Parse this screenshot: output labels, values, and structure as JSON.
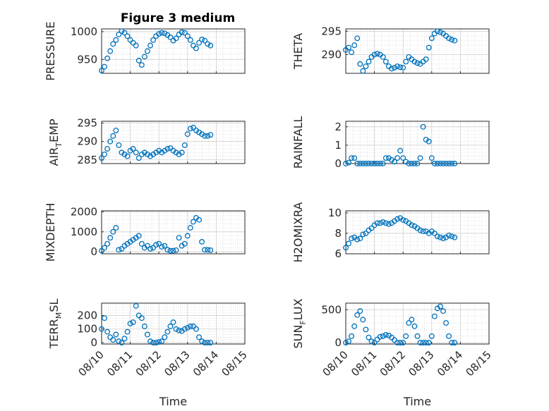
{
  "figure": {
    "title": "Figure 3 medium",
    "marker_color": "#0072BD",
    "time_ticks": [
      "08/10",
      "08/11",
      "08/12",
      "08/13",
      "08/14",
      "08/15"
    ],
    "xlabel": "Time"
  },
  "chart_data": [
    {
      "type": "scatter",
      "ylabel": "PRESSURE",
      "ylim": [
        925,
        1005
      ],
      "yticks": [
        950,
        1000
      ],
      "xlim": [
        0,
        5
      ],
      "grid": true,
      "x": [
        0.0,
        0.1,
        0.2,
        0.3,
        0.4,
        0.5,
        0.6,
        0.7,
        0.8,
        0.9,
        1.0,
        1.1,
        1.2,
        1.3,
        1.4,
        1.5,
        1.6,
        1.7,
        1.8,
        1.9,
        2.0,
        2.1,
        2.2,
        2.3,
        2.4,
        2.5,
        2.6,
        2.7,
        2.8,
        2.9,
        3.0,
        3.1,
        3.2,
        3.3,
        3.4,
        3.5,
        3.6,
        3.7,
        3.8
      ],
      "y": [
        930,
        937,
        952,
        965,
        978,
        985,
        995,
        1001,
        998,
        992,
        985,
        980,
        975,
        948,
        940,
        955,
        965,
        975,
        985,
        992,
        996,
        998,
        997,
        994,
        990,
        984,
        988,
        995,
        999,
        998,
        992,
        985,
        975,
        970,
        980,
        986,
        984,
        978,
        975
      ]
    },
    {
      "type": "scatter",
      "ylabel": "THETA",
      "ylim": [
        286,
        295.5
      ],
      "yticks": [
        290,
        295
      ],
      "xlim": [
        0,
        5
      ],
      "grid": true,
      "x": [
        0.0,
        0.1,
        0.2,
        0.3,
        0.4,
        0.5,
        0.6,
        0.7,
        0.8,
        0.9,
        1.0,
        1.1,
        1.2,
        1.3,
        1.4,
        1.5,
        1.6,
        1.7,
        1.8,
        1.9,
        2.0,
        2.1,
        2.2,
        2.3,
        2.4,
        2.5,
        2.6,
        2.7,
        2.8,
        2.9,
        3.0,
        3.1,
        3.2,
        3.3,
        3.4,
        3.5,
        3.6,
        3.7,
        3.8
      ],
      "y": [
        291,
        291.5,
        290.5,
        292,
        293.5,
        288,
        286.5,
        287.5,
        288.5,
        289.5,
        290,
        290.2,
        290,
        289.5,
        288.5,
        287.5,
        287,
        287.2,
        287.5,
        287.3,
        287.2,
        288.5,
        289.5,
        289,
        288.5,
        288.2,
        288,
        288.5,
        289,
        291.5,
        293.5,
        294.5,
        295,
        294.8,
        294.5,
        294,
        293.5,
        293.2,
        293
      ]
    },
    {
      "type": "scatter",
      "ylabel": "AIR_TEMP",
      "ylim": [
        284,
        295.5
      ],
      "yticks": [
        285,
        290,
        295
      ],
      "xlim": [
        0,
        5
      ],
      "grid": true,
      "x": [
        0.0,
        0.1,
        0.2,
        0.3,
        0.4,
        0.5,
        0.6,
        0.7,
        0.8,
        0.9,
        1.0,
        1.1,
        1.2,
        1.3,
        1.4,
        1.5,
        1.6,
        1.7,
        1.8,
        1.9,
        2.0,
        2.1,
        2.2,
        2.3,
        2.4,
        2.5,
        2.6,
        2.7,
        2.8,
        2.9,
        3.0,
        3.1,
        3.2,
        3.3,
        3.4,
        3.5,
        3.6,
        3.7,
        3.8
      ],
      "y": [
        285.5,
        286.5,
        288,
        290,
        291.5,
        293,
        289,
        287,
        286.5,
        286,
        287.5,
        288,
        287,
        285.5,
        286.5,
        287,
        286.5,
        286,
        286.5,
        287,
        287.5,
        287,
        287.5,
        288,
        288.2,
        287.5,
        287,
        286.5,
        287,
        289,
        292,
        293.5,
        293.8,
        293,
        292.5,
        292,
        291.5,
        291.5,
        291.8
      ]
    },
    {
      "type": "scatter",
      "ylabel": "RAINFALL",
      "ylim": [
        0,
        2.3
      ],
      "yticks": [
        0,
        1,
        2
      ],
      "xlim": [
        0,
        5
      ],
      "grid": true,
      "x": [
        0.0,
        0.1,
        0.2,
        0.3,
        0.4,
        0.5,
        0.6,
        0.7,
        0.8,
        0.9,
        1.0,
        1.1,
        1.2,
        1.3,
        1.4,
        1.5,
        1.6,
        1.7,
        1.8,
        1.9,
        2.0,
        2.1,
        2.2,
        2.3,
        2.4,
        2.5,
        2.6,
        2.7,
        2.8,
        2.9,
        3.0,
        3.1,
        3.2,
        3.3,
        3.4,
        3.5,
        3.6,
        3.7,
        3.8
      ],
      "y": [
        0,
        0.05,
        0.3,
        0.3,
        0,
        0,
        0,
        0,
        0,
        0,
        0,
        0,
        0,
        0,
        0.3,
        0.3,
        0.2,
        0.1,
        0.3,
        0.7,
        0.3,
        0.1,
        0,
        0,
        0,
        0,
        0.3,
        2.0,
        1.3,
        1.2,
        0.3,
        0,
        0,
        0,
        0,
        0,
        0,
        0,
        0
      ]
    },
    {
      "type": "scatter",
      "ylabel": "MIXDEPTH",
      "ylim": [
        -100,
        2050
      ],
      "yticks": [
        0,
        1000,
        2000
      ],
      "xlim": [
        0,
        5
      ],
      "grid": true,
      "x": [
        0.0,
        0.1,
        0.2,
        0.3,
        0.4,
        0.5,
        0.6,
        0.7,
        0.8,
        0.9,
        1.0,
        1.1,
        1.2,
        1.3,
        1.4,
        1.5,
        1.6,
        1.7,
        1.8,
        1.9,
        2.0,
        2.1,
        2.2,
        2.3,
        2.4,
        2.5,
        2.6,
        2.7,
        2.8,
        2.9,
        3.0,
        3.1,
        3.2,
        3.3,
        3.4,
        3.5,
        3.6,
        3.7,
        3.8
      ],
      "y": [
        50,
        200,
        400,
        700,
        1000,
        1200,
        100,
        150,
        300,
        400,
        500,
        600,
        700,
        800,
        400,
        200,
        300,
        150,
        200,
        350,
        400,
        250,
        300,
        100,
        50,
        50,
        80,
        700,
        300,
        400,
        800,
        1200,
        1500,
        1700,
        1600,
        500,
        100,
        100,
        80
      ]
    },
    {
      "type": "scatter",
      "ylabel": "H2OMIXRA",
      "ylim": [
        6,
        10.2
      ],
      "yticks": [
        6,
        8,
        10
      ],
      "xlim": [
        0,
        5
      ],
      "grid": true,
      "x": [
        0.0,
        0.1,
        0.2,
        0.3,
        0.4,
        0.5,
        0.6,
        0.7,
        0.8,
        0.9,
        1.0,
        1.1,
        1.2,
        1.3,
        1.4,
        1.5,
        1.6,
        1.7,
        1.8,
        1.9,
        2.0,
        2.1,
        2.2,
        2.3,
        2.4,
        2.5,
        2.6,
        2.7,
        2.8,
        2.9,
        3.0,
        3.1,
        3.2,
        3.3,
        3.4,
        3.5,
        3.6,
        3.7,
        3.8
      ],
      "y": [
        6.6,
        7.0,
        7.5,
        7.6,
        7.4,
        7.5,
        7.9,
        8.0,
        8.3,
        8.5,
        8.8,
        9.0,
        9.0,
        9.1,
        9.0,
        8.9,
        9.0,
        9.2,
        9.4,
        9.5,
        9.3,
        9.2,
        9.0,
        8.8,
        8.7,
        8.5,
        8.3,
        8.2,
        8.2,
        8.0,
        8.2,
        8.0,
        7.7,
        7.6,
        7.5,
        7.6,
        7.8,
        7.7,
        7.6
      ]
    },
    {
      "type": "scatter",
      "ylabel": "TERR_MSL",
      "ylim": [
        -10,
        290
      ],
      "yticks": [
        0,
        100,
        200
      ],
      "xlim": [
        0,
        5
      ],
      "grid": true,
      "x": [
        0.0,
        0.1,
        0.2,
        0.3,
        0.4,
        0.5,
        0.6,
        0.7,
        0.8,
        0.9,
        1.0,
        1.1,
        1.2,
        1.3,
        1.4,
        1.5,
        1.6,
        1.7,
        1.8,
        1.9,
        2.0,
        2.1,
        2.2,
        2.3,
        2.4,
        2.5,
        2.6,
        2.7,
        2.8,
        2.9,
        3.0,
        3.1,
        3.2,
        3.3,
        3.4,
        3.5,
        3.6,
        3.7,
        3.8
      ],
      "y": [
        100,
        180,
        80,
        40,
        20,
        60,
        10,
        0,
        30,
        80,
        140,
        150,
        270,
        200,
        180,
        120,
        60,
        10,
        0,
        0,
        5,
        10,
        40,
        80,
        120,
        150,
        100,
        90,
        85,
        100,
        110,
        120,
        120,
        100,
        40,
        10,
        0,
        0,
        0
      ]
    },
    {
      "type": "scatter",
      "ylabel": "SUN_FLUX",
      "ylim": [
        -20,
        600
      ],
      "yticks": [
        0,
        500
      ],
      "xlim": [
        0,
        5
      ],
      "grid": true,
      "x": [
        0.0,
        0.1,
        0.2,
        0.3,
        0.4,
        0.5,
        0.6,
        0.7,
        0.8,
        0.9,
        1.0,
        1.1,
        1.2,
        1.3,
        1.4,
        1.5,
        1.6,
        1.7,
        1.8,
        1.9,
        2.0,
        2.1,
        2.2,
        2.3,
        2.4,
        2.5,
        2.6,
        2.7,
        2.8,
        2.9,
        3.0,
        3.1,
        3.2,
        3.3,
        3.4,
        3.5,
        3.6,
        3.7,
        3.8
      ],
      "y": [
        0,
        20,
        100,
        250,
        420,
        480,
        350,
        200,
        80,
        20,
        0,
        50,
        90,
        100,
        120,
        110,
        80,
        40,
        0,
        0,
        0,
        100,
        300,
        350,
        250,
        100,
        0,
        0,
        0,
        0,
        100,
        400,
        520,
        550,
        480,
        300,
        100,
        0,
        0
      ]
    }
  ]
}
